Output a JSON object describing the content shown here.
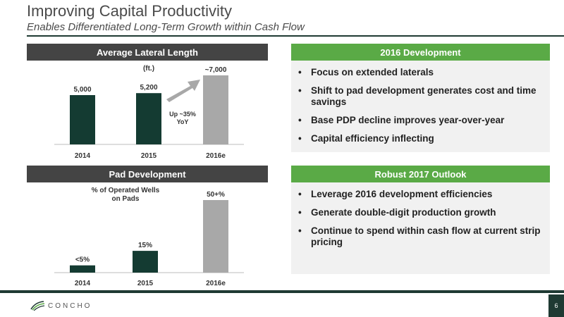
{
  "header": {
    "title": "Improving Capital Productivity",
    "subtitle": "Enables Differentiated Long-Term Growth within Cash Flow"
  },
  "lateral": {
    "heading": "Average Lateral Length"
  },
  "pad": {
    "heading": "Pad Development"
  },
  "development_2016": {
    "heading": "2016 Development",
    "bullets": [
      "Focus on extended laterals",
      "Shift to pad development generates cost and time savings",
      "Base PDP decline improves year-over-year",
      "Capital efficiency inflecting"
    ]
  },
  "outlook_2017": {
    "heading": "Robust 2017 Outlook",
    "bullets": [
      "Leverage 2016 development efficiencies",
      "Generate double-digit production growth",
      "Continue to spend within cash flow at current strip pricing"
    ]
  },
  "footer": {
    "logo_text": "CONCHO",
    "page_number": "6"
  },
  "colors": {
    "dark_bar": "#143b32",
    "estimate_bar": "#a8a8a8",
    "header_dark": "#444444",
    "header_green": "#5aaa46",
    "brand_dark": "#1f3a33"
  },
  "chart_data": [
    {
      "type": "bar",
      "title": "(ft.)",
      "categories": [
        "2014",
        "2015",
        "2016e"
      ],
      "values": [
        5000,
        5200,
        7000
      ],
      "data_labels": [
        "5,000",
        "5,200",
        "~7,000"
      ],
      "annotation": [
        "Up ~35%",
        "YoY"
      ],
      "ylim": [
        0,
        7000
      ],
      "grid": false,
      "legend": "none"
    },
    {
      "type": "bar",
      "title": "% of Operated Wells on Pads",
      "title_lines": [
        "% of Operated Wells",
        "on Pads"
      ],
      "categories": [
        "2014",
        "2015",
        "2016e"
      ],
      "values": [
        5,
        15,
        50
      ],
      "data_labels": [
        "<5%",
        "15%",
        "50+%"
      ],
      "ylim": [
        0,
        50
      ],
      "grid": false,
      "legend": "none"
    }
  ]
}
